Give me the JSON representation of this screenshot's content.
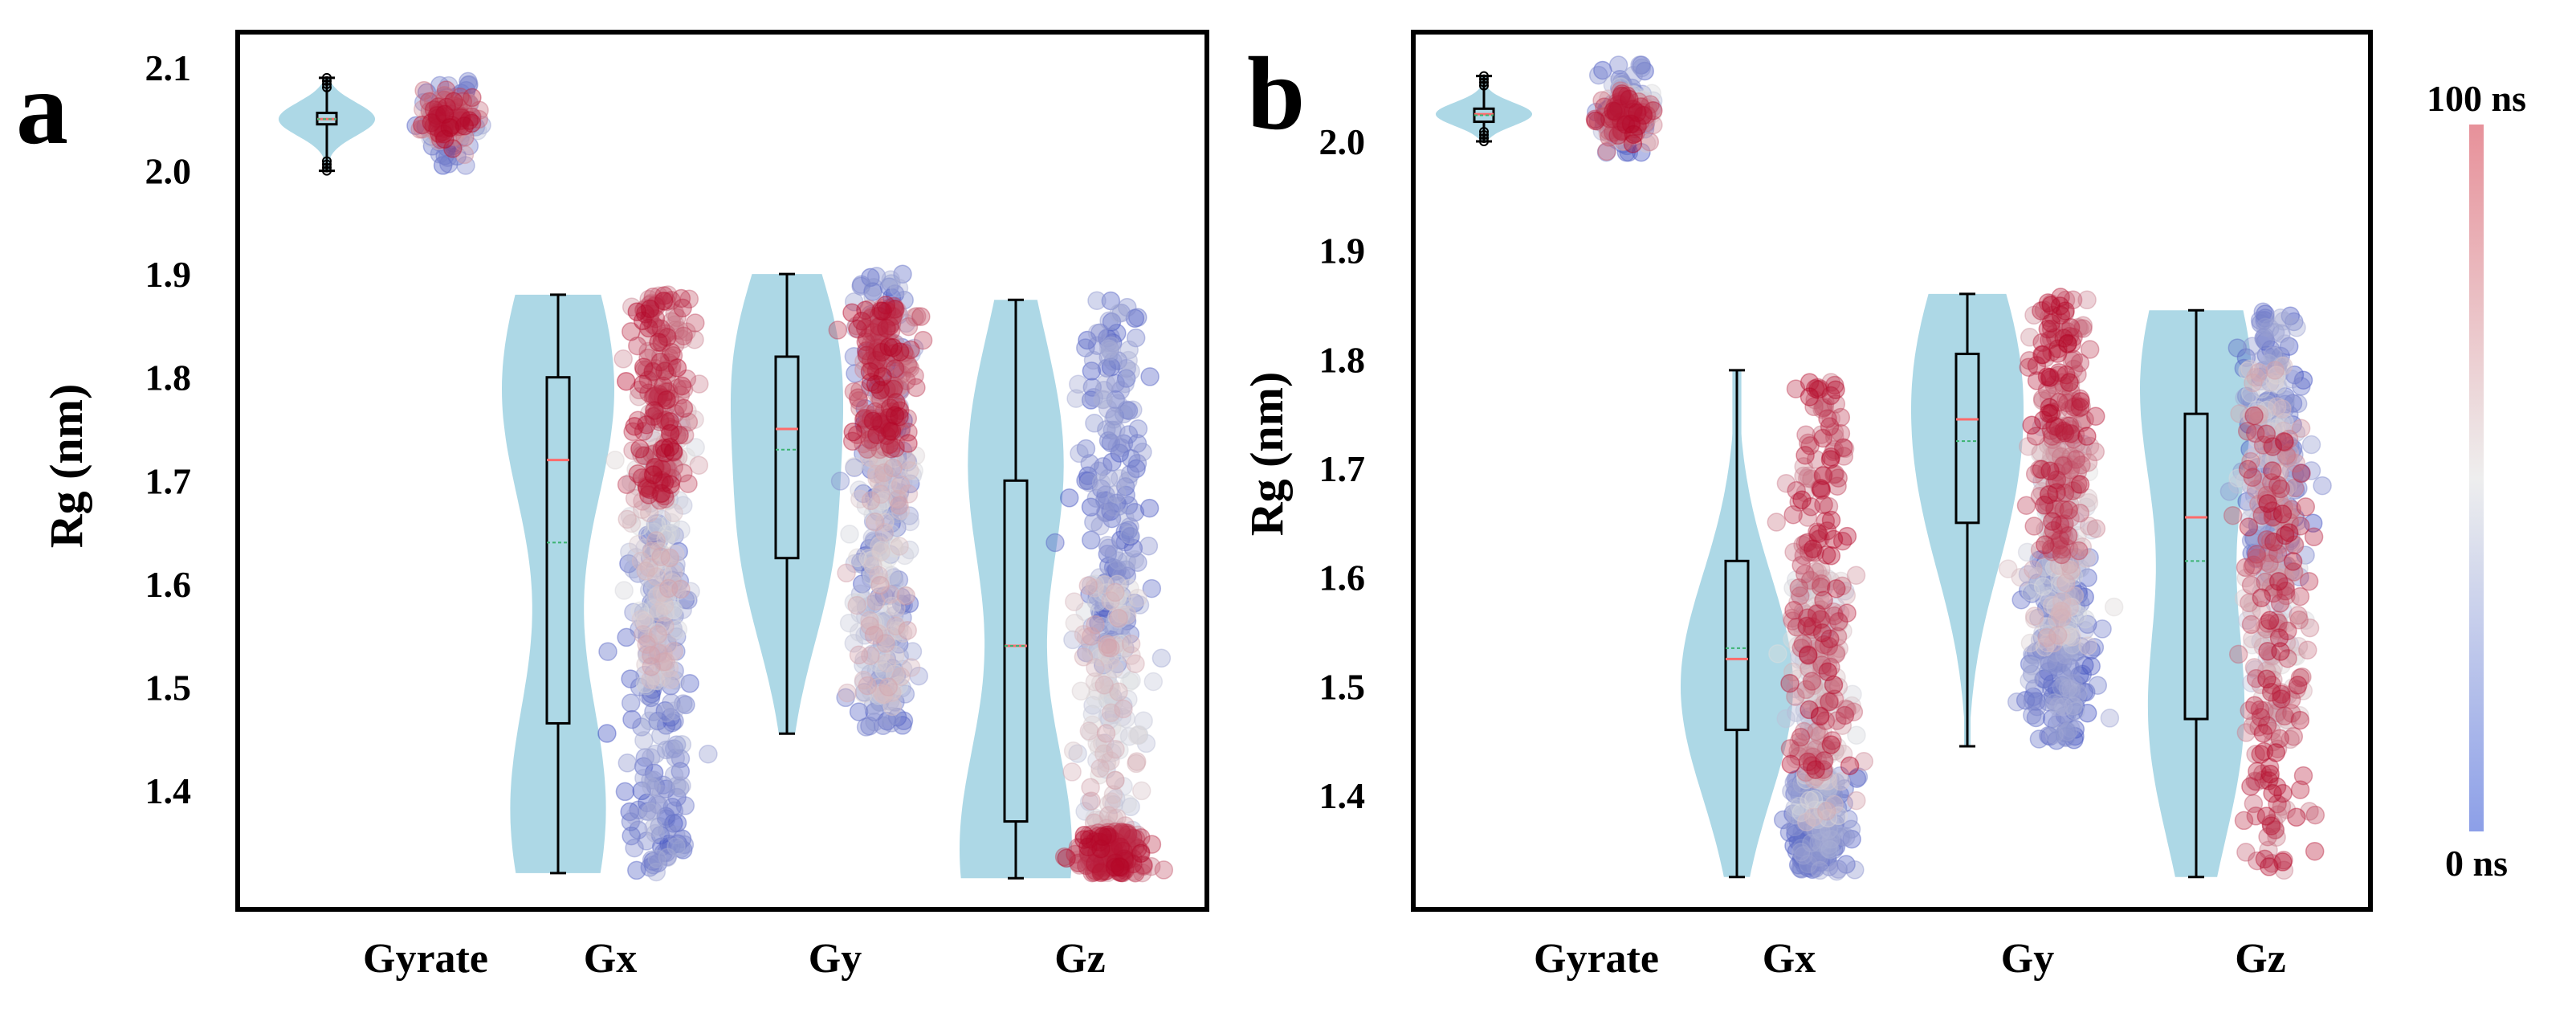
{
  "figure": {
    "colors": {
      "violin": "#add8e6",
      "box_edge": "#000000",
      "median": "#ff6b6b",
      "mean": "#3cb371",
      "cmap_low": "#3b4cc0",
      "cmap_mid": "#dddddd",
      "cmap_high": "#b40426"
    }
  },
  "chart_data": [
    {
      "panel": "a",
      "type": "violin+scatter",
      "ylabel": "Rg (nm)",
      "yticks": [
        "1.4",
        "1.5",
        "1.6",
        "1.7",
        "1.8",
        "1.9",
        "2.0",
        "2.1"
      ],
      "ylim": [
        1.3,
        2.12
      ],
      "categories": [
        "Gyrate",
        "Gx",
        "Gy",
        "Gz"
      ],
      "series": [
        {
          "name": "Gyrate",
          "min": 2.0,
          "q1": 2.045,
          "median": 2.05,
          "mean": 2.05,
          "q3": 2.056,
          "max": 2.09,
          "violin_peaks": [
            2.05
          ],
          "early_range": [
            2.0,
            2.1
          ],
          "late_range": [
            2.03,
            2.07
          ]
        },
        {
          "name": "Gx",
          "min": 1.32,
          "q1": 1.465,
          "median": 1.72,
          "mean": 1.64,
          "q3": 1.8,
          "max": 1.88,
          "violin_peaks": [
            1.79,
            1.38
          ],
          "early_range": [
            1.32,
            1.66
          ],
          "late_range": [
            1.68,
            1.88
          ]
        },
        {
          "name": "Gy",
          "min": 1.455,
          "q1": 1.625,
          "median": 1.75,
          "mean": 1.73,
          "q3": 1.82,
          "max": 1.9,
          "violin_peaks": [
            1.82,
            1.63
          ],
          "early_range": [
            1.46,
            1.9
          ],
          "late_range": [
            1.73,
            1.87
          ],
          "mid_range": [
            1.48,
            1.73
          ]
        },
        {
          "name": "Gz",
          "min": 1.315,
          "q1": 1.37,
          "median": 1.54,
          "mean": 1.54,
          "q3": 1.7,
          "max": 1.875,
          "violin_peaks": [
            1.34,
            1.72
          ],
          "early_range": [
            1.52,
            1.875
          ],
          "late_range": [
            1.32,
            1.36
          ],
          "mid_range": [
            1.36,
            1.6
          ]
        }
      ]
    },
    {
      "panel": "b",
      "type": "violin+scatter",
      "ylabel": "Rg (nm)",
      "yticks": [
        "1.4",
        "1.5",
        "1.6",
        "1.7",
        "1.8",
        "1.9",
        "2.0"
      ],
      "ylim": [
        1.3,
        2.07
      ],
      "categories": [
        "Gyrate",
        "Gx",
        "Gy",
        "Gz"
      ],
      "series": [
        {
          "name": "Gyrate",
          "min": 2.0,
          "q1": 2.018,
          "median": 2.025,
          "mean": 2.024,
          "q3": 2.03,
          "max": 2.06,
          "violin_peaks": [
            2.025
          ],
          "early_range": [
            2.0,
            2.05
          ],
          "late_range": [
            2.01,
            2.04
          ]
        },
        {
          "name": "Gx",
          "min": 1.325,
          "q1": 1.46,
          "median": 1.525,
          "mean": 1.535,
          "q3": 1.615,
          "max": 1.79,
          "violin_peaks": [
            1.5
          ],
          "early_range": [
            1.33,
            1.42
          ],
          "late_range": [
            1.42,
            1.78
          ]
        },
        {
          "name": "Gy",
          "min": 1.445,
          "q1": 1.65,
          "median": 1.745,
          "mean": 1.725,
          "q3": 1.805,
          "max": 1.86,
          "violin_peaks": [
            1.81,
            1.67
          ],
          "early_range": [
            1.45,
            1.62
          ],
          "late_range": [
            1.62,
            1.86
          ]
        },
        {
          "name": "Gz",
          "min": 1.325,
          "q1": 1.47,
          "median": 1.655,
          "mean": 1.615,
          "q3": 1.75,
          "max": 1.845,
          "violin_peaks": [
            1.78,
            1.47
          ],
          "early_range": [
            1.6,
            1.845
          ],
          "late_range": [
            1.33,
            1.75
          ]
        }
      ],
      "colorbar": {
        "top_label": "100 ns",
        "bottom_label": "0 ns"
      }
    }
  ]
}
